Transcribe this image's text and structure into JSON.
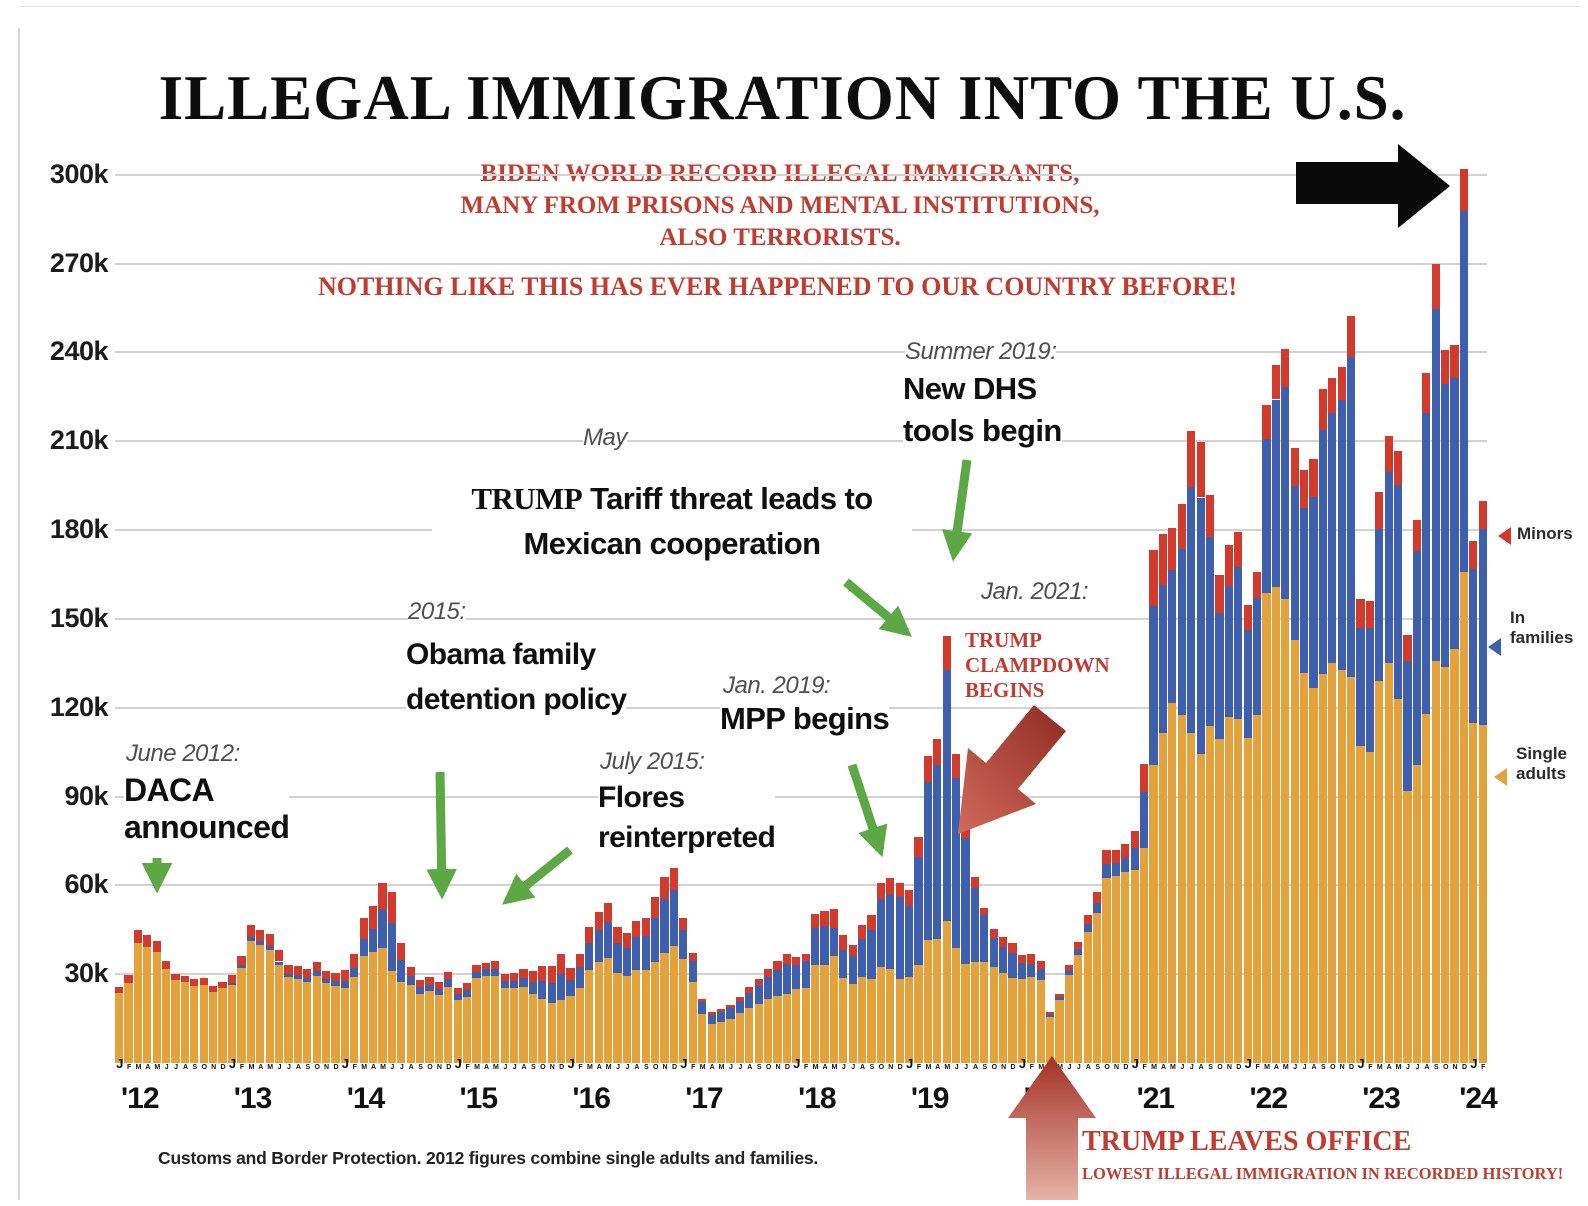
{
  "title": "ILLEGAL IMMIGRATION INTO THE U.S.",
  "warning": {
    "line1": "BIDEN WORLD RECORD ILLEGAL IMMIGRANTS,",
    "line2": "MANY FROM PRISONS AND MENTAL INSTITUTIONS,",
    "line3": "ALSO TERRORISTS.",
    "line4": "NOTHING LIKE THIS HAS EVER HAPPENED TO OUR COUNTRY BEFORE!"
  },
  "axis": {
    "y_ticks": [
      {
        "label": "300k",
        "value": 300
      },
      {
        "label": "270k",
        "value": 270
      },
      {
        "label": "240k",
        "value": 240
      },
      {
        "label": "210k",
        "value": 210
      },
      {
        "label": "180k",
        "value": 180
      },
      {
        "label": "150k",
        "value": 150
      },
      {
        "label": "120k",
        "value": 120
      },
      {
        "label": "90k",
        "value": 90
      },
      {
        "label": "60k",
        "value": 60
      },
      {
        "label": "30k",
        "value": 30
      }
    ],
    "month_letters": "JFMAMJJASOND",
    "years": [
      "'12",
      "'13",
      "'14",
      "'15",
      "'16",
      "'17",
      "'18",
      "'19",
      "'20",
      "'21",
      "'22",
      "'23",
      "'24"
    ]
  },
  "legend": [
    {
      "label": "Minors",
      "color": "#d23b2c"
    },
    {
      "label": "In families",
      "color": "#3d5fae"
    },
    {
      "label": "Single adults",
      "color": "#e3a23c"
    }
  ],
  "annotations": {
    "daca": {
      "date": "June 2012:",
      "lines": [
        "DACA",
        "announced"
      ]
    },
    "obama": {
      "date": "2015:",
      "lines": [
        "Obama family",
        "detention policy"
      ]
    },
    "flores": {
      "date": "July 2015:",
      "lines": [
        "Flores",
        "reinterpreted"
      ]
    },
    "tariff": {
      "date": "May",
      "prefix": "TRUMP",
      "lines": [
        "Tariff threat leads to",
        "Mexican cooperation"
      ]
    },
    "dhs": {
      "date": "Summer 2019:",
      "lines": [
        "New DHS",
        "tools begin"
      ]
    },
    "mpp": {
      "date": "Jan. 2019:",
      "lines": [
        "MPP begins"
      ]
    },
    "clampdown": {
      "date": "Jan. 2021:",
      "lines": [
        "TRUMP",
        "CLAMPDOWN",
        "BEGINS"
      ]
    },
    "leaves": {
      "title": "TRUMP LEAVES OFFICE",
      "sub": "LOWEST ILLEGAL IMMIGRATION IN RECORDED HISTORY!"
    }
  },
  "source_note": "Customs and Border Protection. 2012 figures combine single adults and families.",
  "colors": {
    "single_adults": "#e3a23c",
    "in_families": "#3d5fae",
    "minors": "#d23b2c",
    "green_arrow": "#5ba845",
    "red_text": "#c23b30",
    "grid": "#d2d2d2",
    "black_arrow": "#0a0a0a"
  },
  "chart_data": {
    "type": "bar",
    "subtype": "stacked-monthly",
    "title": "ILLEGAL IMMIGRATION INTO THE U.S.",
    "unit": "thousands of people per month",
    "x_start": "2012-01",
    "x_end": "2024-02",
    "ylim": [
      0,
      310
    ],
    "grid": true,
    "legend_position": "right",
    "series_order": [
      "single_adults",
      "in_families",
      "minors"
    ],
    "monthly": [
      [
        23.6,
        0,
        2.0
      ],
      [
        27.1,
        0,
        2.8
      ],
      [
        40.7,
        0,
        4.1
      ],
      [
        39.3,
        0,
        4.0
      ],
      [
        37.5,
        0,
        3.8
      ],
      [
        31.6,
        0,
        2.9
      ],
      [
        27.9,
        0,
        2.3
      ],
      [
        27.3,
        0,
        2.2
      ],
      [
        26.1,
        0,
        2.2
      ],
      [
        26.5,
        0,
        2.3
      ],
      [
        23.9,
        0,
        2.2
      ],
      [
        25.2,
        0,
        2.1
      ],
      [
        26.3,
        0.7,
        2.6
      ],
      [
        32.1,
        0.9,
        3.2
      ],
      [
        41.3,
        1.2,
        4.2
      ],
      [
        40.0,
        1.2,
        3.9
      ],
      [
        38.2,
        1.3,
        4.1
      ],
      [
        33.0,
        1.3,
        3.7
      ],
      [
        28.9,
        1.2,
        3.0
      ],
      [
        28.4,
        1.3,
        3.0
      ],
      [
        27.4,
        1.4,
        2.9
      ],
      [
        29.4,
        1.7,
        3.0
      ],
      [
        26.9,
        1.5,
        2.8
      ],
      [
        26.0,
        1.6,
        2.7
      ],
      [
        25.5,
        2.3,
        3.7
      ],
      [
        28.9,
        3.1,
        4.8
      ],
      [
        36.1,
        5.8,
        7.2
      ],
      [
        37.5,
        7.9,
        7.7
      ],
      [
        38.9,
        12.8,
        9.0
      ],
      [
        31.0,
        16.3,
        10.6
      ],
      [
        27.5,
        7.4,
        5.5
      ],
      [
        26.2,
        3.1,
        3.1
      ],
      [
        23.4,
        2.3,
        2.4
      ],
      [
        24.2,
        2.2,
        2.5
      ],
      [
        22.9,
        2.2,
        2.2
      ],
      [
        25.8,
        2.5,
        2.4
      ],
      [
        21.4,
        2.0,
        2.1
      ],
      [
        22.4,
        2.2,
        2.3
      ],
      [
        28.6,
        2.2,
        2.2
      ],
      [
        29.3,
        2.3,
        2.3
      ],
      [
        29.4,
        2.4,
        2.5
      ],
      [
        25.5,
        2.2,
        2.5
      ],
      [
        25.2,
        2.5,
        2.6
      ],
      [
        25.6,
        3.0,
        3.0
      ],
      [
        23.4,
        3.9,
        3.7
      ],
      [
        21.8,
        6.0,
        4.9
      ],
      [
        20.2,
        7.0,
        5.6
      ],
      [
        21.3,
        8.9,
        6.8
      ],
      [
        22.5,
        5.5,
        4.0
      ],
      [
        25.5,
        7.0,
        4.5
      ],
      [
        31.5,
        9.0,
        5.5
      ],
      [
        34.0,
        11.0,
        6.0
      ],
      [
        35.5,
        12.0,
        6.5
      ],
      [
        30.5,
        10.0,
        5.5
      ],
      [
        29.5,
        9.5,
        5.0
      ],
      [
        31.5,
        11.0,
        5.5
      ],
      [
        31.5,
        11.5,
        6.0
      ],
      [
        34.0,
        15.0,
        7.0
      ],
      [
        37.0,
        18.5,
        7.5
      ],
      [
        39.5,
        19.0,
        7.5
      ],
      [
        35.0,
        10.0,
        4.0
      ],
      [
        27.5,
        7.0,
        2.8
      ],
      [
        16.5,
        4.0,
        1.3
      ],
      [
        13.2,
        3.0,
        1.0
      ],
      [
        14.0,
        3.2,
        1.1
      ],
      [
        15.0,
        3.5,
        1.2
      ],
      [
        16.8,
        4.2,
        1.4
      ],
      [
        18.6,
        5.2,
        1.8
      ],
      [
        20.0,
        6.3,
        2.2
      ],
      [
        21.6,
        7.6,
        2.6
      ],
      [
        22.6,
        8.9,
        3.0
      ],
      [
        23.4,
        10.2,
        3.3
      ],
      [
        25.0,
        8.2,
        2.7
      ],
      [
        25.5,
        8.8,
        2.4
      ],
      [
        33.0,
        12.5,
        4.8
      ],
      [
        33.0,
        13.4,
        4.8
      ],
      [
        36.0,
        9.5,
        6.4
      ],
      [
        28.7,
        9.4,
        5.1
      ],
      [
        26.8,
        9.2,
        4.0
      ],
      [
        29.1,
        12.8,
        4.7
      ],
      [
        28.3,
        16.7,
        5.0
      ],
      [
        32.4,
        23.1,
        5.3
      ],
      [
        31.8,
        25.2,
        5.5
      ],
      [
        28.5,
        27.5,
        4.8
      ],
      [
        29.0,
        24.2,
        5.1
      ],
      [
        33.0,
        36.5,
        7.0
      ],
      [
        41.6,
        53.2,
        8.9
      ],
      [
        42.0,
        58.5,
        8.9
      ],
      [
        48.1,
        84.5,
        11.5
      ],
      [
        38.9,
        57.4,
        8.0
      ],
      [
        33.6,
        42.5,
        5.6
      ],
      [
        34.0,
        25.0,
        3.7
      ],
      [
        34.2,
        15.8,
        2.5
      ],
      [
        32.6,
        9.7,
        2.8
      ],
      [
        30.3,
        9.0,
        3.3
      ],
      [
        28.6,
        8.7,
        3.2
      ],
      [
        28.5,
        5.2,
        2.9
      ],
      [
        29.0,
        4.6,
        3.1
      ],
      [
        28.0,
        3.6,
        2.9
      ],
      [
        15.7,
        0.7,
        0.7
      ],
      [
        21.2,
        1.0,
        1.0
      ],
      [
        29.8,
        1.6,
        1.6
      ],
      [
        36.5,
        1.9,
        2.5
      ],
      [
        44.4,
        2.6,
        3.0
      ],
      [
        50.8,
        3.1,
        3.8
      ],
      [
        62.5,
        4.6,
        4.8
      ],
      [
        63.2,
        4.4,
        4.5
      ],
      [
        64.4,
        4.7,
        4.9
      ],
      [
        65.2,
        7.3,
        5.9
      ],
      [
        72.5,
        19.2,
        9.4
      ],
      [
        100.8,
        53.6,
        18.9
      ],
      [
        111.5,
        50.1,
        17.2
      ],
      [
        121.7,
        44.7,
        14.2
      ],
      [
        117.7,
        55.9,
        15.2
      ],
      [
        111.6,
        83.0,
        19.0
      ],
      [
        104.5,
        86.5,
        18.8
      ],
      [
        113.7,
        64.1,
        14.2
      ],
      [
        109.4,
        42.6,
        12.8
      ],
      [
        117.0,
        44.2,
        13.6
      ],
      [
        116.3,
        51.1,
        11.9
      ],
      [
        109.7,
        36.4,
        8.7
      ],
      [
        117.7,
        39.3,
        8.9
      ],
      [
        158.8,
        51.8,
        11.7
      ],
      [
        160.7,
        63.4,
        11.7
      ],
      [
        156.6,
        71.8,
        12.7
      ],
      [
        142.8,
        52.0,
        13.0
      ],
      [
        131.6,
        55.8,
        12.8
      ],
      [
        126.7,
        64.3,
        13.1
      ],
      [
        131.3,
        82.6,
        13.6
      ],
      [
        135.0,
        84.5,
        12.0
      ],
      [
        132.8,
        91.1,
        11.0
      ],
      [
        130.5,
        107.9,
        13.9
      ],
      [
        107.0,
        39.8,
        9.8
      ],
      [
        105.0,
        41.8,
        9.3
      ],
      [
        129.0,
        51.5,
        12.5
      ],
      [
        135.1,
        64.4,
        12.2
      ],
      [
        123.1,
        72.0,
        11.6
      ],
      [
        91.8,
        43.9,
        8.9
      ],
      [
        100.8,
        72.2,
        10.5
      ],
      [
        118.0,
        101.4,
        13.5
      ],
      [
        135.7,
        118.9,
        15.1
      ],
      [
        133.9,
        95.4,
        11.6
      ],
      [
        139.9,
        91.5,
        11.0
      ],
      [
        166.0,
        121.6,
        14.4
      ],
      [
        114.8,
        52.2,
        9.2
      ],
      [
        114.2,
        66.2,
        9.5
      ]
    ]
  }
}
